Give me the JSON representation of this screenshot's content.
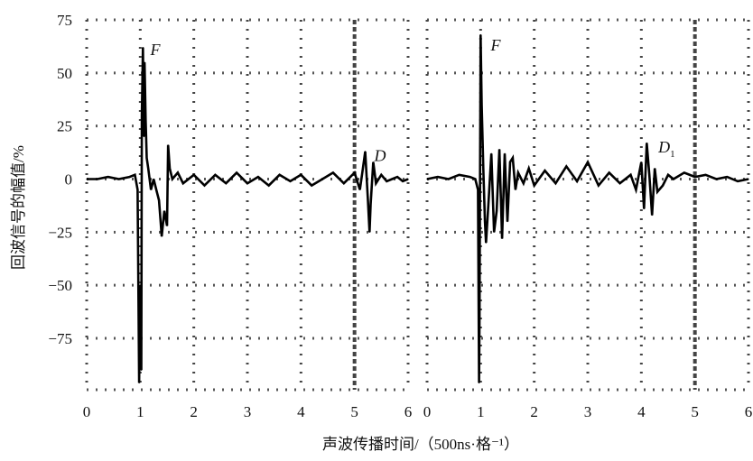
{
  "chart_data": {
    "type": "line",
    "ylabel": "回波信号的幅值/%",
    "xlabel": "声波传播时间/（500ns·格⁻¹）",
    "ylim": [
      -100,
      75
    ],
    "yticks": [
      75,
      50,
      25,
      0,
      -25,
      -50,
      -75
    ],
    "ytick_labels": [
      "75",
      "50",
      "25",
      "0",
      "−25",
      "−50",
      "−75"
    ],
    "grid": true,
    "panels": [
      {
        "xlim": [
          0,
          6
        ],
        "xticks": [
          0,
          1,
          2,
          3,
          4,
          5,
          6
        ],
        "x_tick_labels": [
          "0",
          "1",
          "2",
          "3",
          "4",
          "5",
          "6"
        ],
        "annotations": [
          {
            "text": "F",
            "x": 1.12,
            "y": 61
          },
          {
            "text": "D",
            "x": 5.3,
            "y": 11
          }
        ],
        "series": [
          {
            "x": [
              0,
              0.2,
              0.4,
              0.6,
              0.8,
              0.9,
              0.95,
              0.98,
              1.0,
              1.02,
              1.03,
              1.05,
              1.07,
              1.08,
              1.1,
              1.12,
              1.15,
              1.2,
              1.25,
              1.3,
              1.35,
              1.38,
              1.4,
              1.45,
              1.5,
              1.52,
              1.55,
              1.6,
              1.7,
              1.8,
              2.0,
              2.2,
              2.4,
              2.6,
              2.8,
              3.0,
              3.2,
              3.4,
              3.6,
              3.8,
              4.0,
              4.2,
              4.4,
              4.6,
              4.8,
              5.0,
              5.1,
              5.15,
              5.2,
              5.25,
              5.28,
              5.3,
              5.35,
              5.4,
              5.5,
              5.6,
              5.7,
              5.8,
              5.9,
              6.0
            ],
            "y": [
              0,
              0,
              1,
              0,
              1,
              2,
              -5,
              -96,
              -50,
              -90,
              30,
              62,
              20,
              55,
              28,
              10,
              5,
              -5,
              0,
              -5,
              -10,
              -20,
              -27,
              -15,
              -22,
              16,
              5,
              0,
              3,
              -2,
              2,
              -3,
              2,
              -2,
              3,
              -2,
              1,
              -3,
              2,
              -1,
              2,
              -3,
              0,
              3,
              -2,
              3,
              -5,
              4,
              13,
              -10,
              -25,
              -12,
              8,
              -2,
              2,
              -1,
              0,
              1,
              -1,
              0
            ]
          }
        ]
      },
      {
        "xlim": [
          0,
          6
        ],
        "xticks": [
          0,
          1,
          2,
          3,
          4,
          5,
          6
        ],
        "x_tick_labels": [
          "0",
          "1",
          "2",
          "3",
          "4",
          "5",
          "6"
        ],
        "annotations": [
          {
            "text": "F",
            "x": 1.12,
            "y": 63
          },
          {
            "text": "D",
            "sub": "1",
            "x": 4.25,
            "y": 15
          }
        ],
        "series": [
          {
            "x": [
              0,
              0.2,
              0.4,
              0.6,
              0.8,
              0.9,
              0.95,
              0.97,
              0.98,
              1.0,
              1.02,
              1.05,
              1.08,
              1.1,
              1.15,
              1.2,
              1.25,
              1.3,
              1.35,
              1.4,
              1.45,
              1.5,
              1.55,
              1.6,
              1.65,
              1.7,
              1.8,
              1.9,
              2.0,
              2.2,
              2.4,
              2.6,
              2.8,
              3.0,
              3.2,
              3.4,
              3.6,
              3.8,
              3.9,
              4.0,
              4.05,
              4.1,
              4.15,
              4.2,
              4.25,
              4.3,
              4.4,
              4.5,
              4.6,
              4.8,
              5.0,
              5.2,
              5.4,
              5.6,
              5.8,
              6.0
            ],
            "y": [
              0,
              1,
              0,
              2,
              1,
              0,
              -5,
              -96,
              -65,
              68,
              35,
              5,
              -20,
              -30,
              -10,
              12,
              -25,
              -15,
              14,
              -28,
              12,
              -20,
              8,
              10,
              -5,
              3,
              -2,
              5,
              -3,
              4,
              -2,
              6,
              -1,
              8,
              -3,
              3,
              -2,
              2,
              -5,
              8,
              -14,
              17,
              2,
              -17,
              5,
              -6,
              -3,
              2,
              0,
              3,
              1,
              2,
              0,
              1,
              -1,
              0
            ]
          }
        ]
      }
    ]
  }
}
